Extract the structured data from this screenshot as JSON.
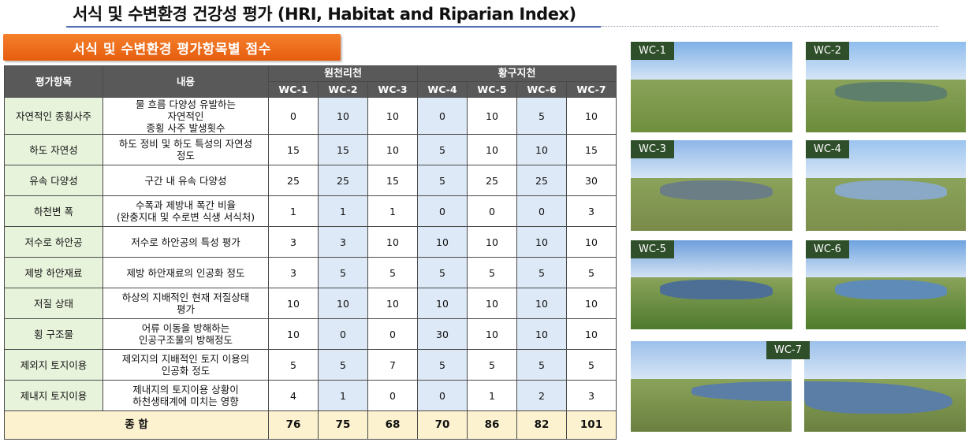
{
  "title": "서식 및 수변환경 건강성 평가 (HRI, Habitat and Riparian Index)",
  "section_badge": "서식 및 수변환경 평가항목별 점수",
  "table": {
    "col_item": "평가항목",
    "col_desc": "내용",
    "groups": [
      "원천리천",
      "황구지천"
    ],
    "sites": [
      "WC-1",
      "WC-2",
      "WC-3",
      "WC-4",
      "WC-5",
      "WC-6",
      "WC-7"
    ],
    "rows": [
      {
        "item": "자연적인 종횡사주",
        "desc": [
          "물 흐름 다양성 유발하는",
          "자연적인",
          "종횡 사주 발생횟수"
        ],
        "values": [
          "0",
          "10",
          "10",
          "0",
          "10",
          "5",
          "10"
        ]
      },
      {
        "item": "하도 자연성",
        "desc": [
          "하도 정비 및 하도 특성의 자연성",
          "정도"
        ],
        "values": [
          "15",
          "15",
          "10",
          "5",
          "10",
          "10",
          "15"
        ]
      },
      {
        "item": "유속 다양성",
        "desc": [
          "구간 내 유속 다양성"
        ],
        "values": [
          "25",
          "25",
          "15",
          "5",
          "25",
          "25",
          "30"
        ]
      },
      {
        "item": "하천변 폭",
        "desc": [
          "수폭과 제방내 폭간 비율",
          "(완충지대 및 수로변 식생 서식처)"
        ],
        "values": [
          "1",
          "1",
          "1",
          "0",
          "0",
          "0",
          "3"
        ]
      },
      {
        "item": "저수로 하안공",
        "desc": [
          "저수로 하안공의 특성 평가"
        ],
        "values": [
          "3",
          "3",
          "10",
          "10",
          "10",
          "10",
          "10"
        ]
      },
      {
        "item": "제방 하안재료",
        "desc": [
          "제방 하안재료의 인공화 정도"
        ],
        "values": [
          "3",
          "5",
          "5",
          "5",
          "5",
          "5",
          "5"
        ]
      },
      {
        "item": "저질 상태",
        "desc": [
          "하상의 지배적인 현재 저질상태",
          "평가"
        ],
        "values": [
          "10",
          "10",
          "10",
          "10",
          "10",
          "10",
          "10"
        ]
      },
      {
        "item": "횡 구조물",
        "desc": [
          "어류 이동을 방해하는",
          "인공구조물의 방해정도"
        ],
        "values": [
          "10",
          "0",
          "0",
          "30",
          "10",
          "10",
          "10"
        ]
      },
      {
        "item": "제외지 토지이용",
        "desc": [
          "제외지의 지배적인 토지 이용의",
          "인공화 정도"
        ],
        "values": [
          "5",
          "5",
          "7",
          "5",
          "5",
          "5",
          "5"
        ]
      },
      {
        "item": "제내지 토지이용",
        "desc": [
          "제내지의 토지이용 상황이",
          "하천생태계에 미치는 영향"
        ],
        "values": [
          "4",
          "1",
          "0",
          "0",
          "1",
          "2",
          "3"
        ]
      }
    ],
    "total_label": "종 합",
    "totals": [
      "76",
      "75",
      "68",
      "70",
      "86",
      "82",
      "101"
    ]
  },
  "photos": [
    {
      "label": "WC-1"
    },
    {
      "label": "WC-2"
    },
    {
      "label": "WC-3"
    },
    {
      "label": "WC-4"
    },
    {
      "label": "WC-5"
    },
    {
      "label": "WC-6"
    },
    {
      "label": "WC-7"
    }
  ],
  "colors": {
    "accent": "#f07024",
    "header": "#595959",
    "item_bg": "#e8f3dc",
    "blue_col": "#dde9f6",
    "total_bg": "#fdf2cf"
  }
}
